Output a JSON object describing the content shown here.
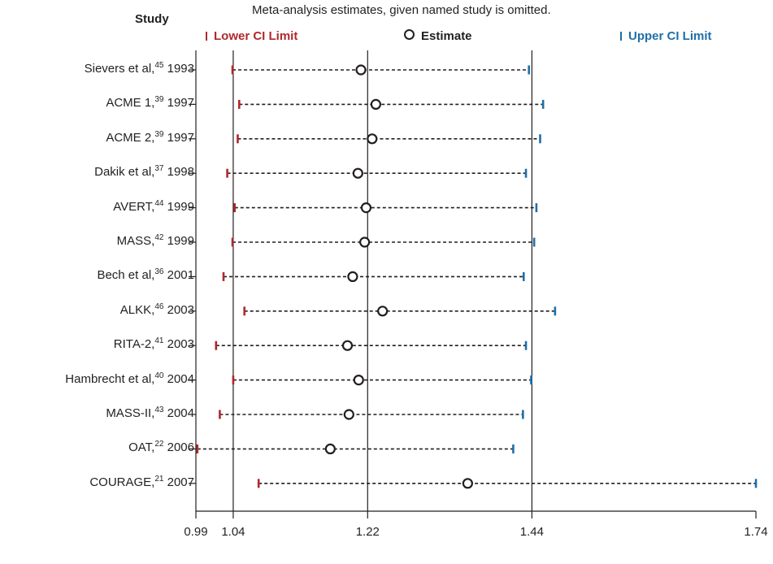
{
  "chart_data": {
    "type": "scatter",
    "subtitle": "Meta-analysis estimates, given named study is omitted.",
    "y_header": "Study",
    "legend": {
      "lower": "Lower CI Limit",
      "estimate": "Estimate",
      "upper": "Upper CI Limit"
    },
    "x_ticks": [
      {
        "value": 0.99,
        "label": "0.99"
      },
      {
        "value": 1.04,
        "label": "1.04"
      },
      {
        "value": 1.22,
        "label": "1.22"
      },
      {
        "value": 1.44,
        "label": "1.44"
      },
      {
        "value": 1.74,
        "label": "1.74"
      }
    ],
    "reference_lines": [
      1.04,
      1.22,
      1.44
    ],
    "xlim": [
      0.99,
      1.74
    ],
    "studies": [
      {
        "name": "Sievers et al,",
        "ref": "45",
        "year": "1993",
        "lower": 1.039,
        "estimate": 1.211,
        "upper": 1.436
      },
      {
        "name": "ACME 1,",
        "ref": "39",
        "year": "1997",
        "lower": 1.048,
        "estimate": 1.231,
        "upper": 1.455
      },
      {
        "name": "ACME 2,",
        "ref": "39",
        "year": "1997",
        "lower": 1.046,
        "estimate": 1.226,
        "upper": 1.451
      },
      {
        "name": "Dakik et al,",
        "ref": "37",
        "year": "1998",
        "lower": 1.032,
        "estimate": 1.207,
        "upper": 1.432
      },
      {
        "name": "AVERT,",
        "ref": "44",
        "year": "1999",
        "lower": 1.042,
        "estimate": 1.218,
        "upper": 1.446
      },
      {
        "name": "MASS,",
        "ref": "42",
        "year": "1999",
        "lower": 1.039,
        "estimate": 1.216,
        "upper": 1.443
      },
      {
        "name": "Bech et al,",
        "ref": "36",
        "year": "2001",
        "lower": 1.027,
        "estimate": 1.2,
        "upper": 1.429
      },
      {
        "name": "ALKK,",
        "ref": "46",
        "year": "2003",
        "lower": 1.055,
        "estimate": 1.24,
        "upper": 1.471
      },
      {
        "name": "RITA-2,",
        "ref": "41",
        "year": "2003",
        "lower": 1.017,
        "estimate": 1.193,
        "upper": 1.432
      },
      {
        "name": "Hambrecht et al,",
        "ref": "40",
        "year": "2004",
        "lower": 1.04,
        "estimate": 1.208,
        "upper": 1.439
      },
      {
        "name": "MASS-II,",
        "ref": "43",
        "year": "2004",
        "lower": 1.022,
        "estimate": 1.195,
        "upper": 1.428
      },
      {
        "name": "OAT,",
        "ref": "22",
        "year": "2006",
        "lower": 0.992,
        "estimate": 1.17,
        "upper": 1.415
      },
      {
        "name": "COURAGE,",
        "ref": "21",
        "year": "2007",
        "lower": 1.074,
        "estimate": 1.354,
        "upper": 1.74
      }
    ],
    "colors": {
      "lower": "#b0282d",
      "estimate": "#231f20",
      "upper": "#1f6fa8",
      "axis": "#231f20"
    }
  }
}
